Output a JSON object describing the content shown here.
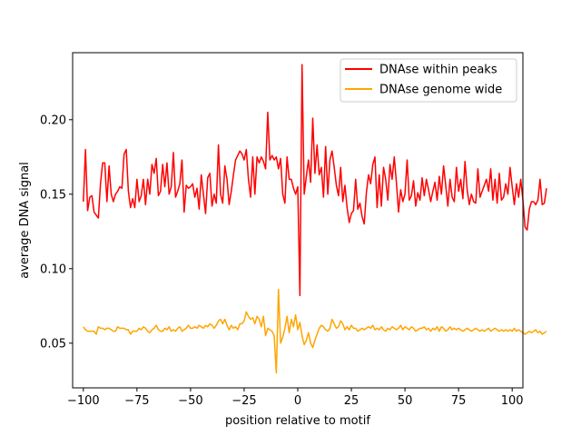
{
  "chart_data": {
    "type": "line",
    "xlabel": "position relative to motif",
    "ylabel": "average DNA signal",
    "xlim": [
      -105,
      105
    ],
    "ylim": [
      0.02,
      0.245
    ],
    "xticks": [
      -100,
      -75,
      -50,
      -25,
      0,
      25,
      50,
      75,
      100
    ],
    "xtick_labels": [
      "−100",
      "−75",
      "−50",
      "−25",
      "0",
      "25",
      "50",
      "75",
      "100"
    ],
    "yticks": [
      0.05,
      0.1,
      0.15,
      0.2
    ],
    "ytick_labels": [
      "0.05",
      "0.10",
      "0.15",
      "0.20"
    ],
    "grid": false,
    "legend_position": "top-right",
    "series": [
      {
        "name": "DNAse within peaks",
        "color": "#ff0000",
        "x_start": -100,
        "x_step": 1,
        "values": [
          0.145,
          0.18,
          0.139,
          0.148,
          0.149,
          0.138,
          0.136,
          0.134,
          0.157,
          0.171,
          0.171,
          0.145,
          0.169,
          0.15,
          0.145,
          0.15,
          0.152,
          0.155,
          0.154,
          0.177,
          0.18,
          0.152,
          0.141,
          0.147,
          0.141,
          0.16,
          0.145,
          0.149,
          0.16,
          0.143,
          0.16,
          0.15,
          0.17,
          0.164,
          0.174,
          0.149,
          0.152,
          0.17,
          0.155,
          0.171,
          0.15,
          0.155,
          0.178,
          0.148,
          0.152,
          0.157,
          0.173,
          0.138,
          0.156,
          0.154,
          0.155,
          0.157,
          0.148,
          0.154,
          0.14,
          0.163,
          0.15,
          0.137,
          0.161,
          0.164,
          0.142,
          0.15,
          0.144,
          0.183,
          0.15,
          0.144,
          0.169,
          0.16,
          0.143,
          0.152,
          0.163,
          0.173,
          0.176,
          0.179,
          0.177,
          0.173,
          0.18,
          0.16,
          0.148,
          0.175,
          0.15,
          0.175,
          0.171,
          0.175,
          0.172,
          0.167,
          0.205,
          0.173,
          0.176,
          0.173,
          0.175,
          0.167,
          0.174,
          0.15,
          0.144,
          0.175,
          0.16,
          0.16,
          0.154,
          0.15,
          0.155,
          0.082,
          0.237,
          0.15,
          0.162,
          0.173,
          0.158,
          0.201,
          0.164,
          0.183,
          0.163,
          0.168,
          0.148,
          0.182,
          0.15,
          0.173,
          0.179,
          0.168,
          0.156,
          0.149,
          0.168,
          0.145,
          0.156,
          0.141,
          0.131,
          0.137,
          0.139,
          0.16,
          0.14,
          0.144,
          0.135,
          0.13,
          0.151,
          0.163,
          0.157,
          0.17,
          0.175,
          0.141,
          0.163,
          0.142,
          0.168,
          0.16,
          0.146,
          0.17,
          0.16,
          0.175,
          0.158,
          0.138,
          0.153,
          0.145,
          0.15,
          0.173,
          0.146,
          0.149,
          0.159,
          0.142,
          0.151,
          0.146,
          0.161,
          0.149,
          0.16,
          0.153,
          0.145,
          0.152,
          0.158,
          0.146,
          0.162,
          0.15,
          0.169,
          0.156,
          0.142,
          0.16,
          0.148,
          0.145,
          0.168,
          0.152,
          0.16,
          0.147,
          0.172,
          0.153,
          0.143,
          0.15,
          0.145,
          0.144,
          0.167,
          0.148,
          0.152,
          0.156,
          0.16,
          0.152,
          0.167,
          0.146,
          0.16,
          0.144,
          0.164,
          0.146,
          0.148,
          0.157,
          0.15,
          0.168,
          0.155,
          0.143,
          0.157,
          0.148,
          0.16,
          0.146,
          0.128,
          0.126,
          0.14,
          0.145,
          0.145,
          0.143,
          0.146,
          0.16,
          0.143,
          0.144,
          0.154
        ]
      },
      {
        "name": "DNAse genome wide",
        "color": "#ffa500",
        "x_start": -100,
        "x_step": 1,
        "values": [
          0.061,
          0.059,
          0.058,
          0.058,
          0.058,
          0.058,
          0.056,
          0.061,
          0.06,
          0.06,
          0.059,
          0.06,
          0.06,
          0.059,
          0.058,
          0.058,
          0.061,
          0.06,
          0.06,
          0.06,
          0.059,
          0.059,
          0.056,
          0.058,
          0.058,
          0.058,
          0.06,
          0.059,
          0.061,
          0.06,
          0.058,
          0.057,
          0.059,
          0.06,
          0.062,
          0.059,
          0.058,
          0.058,
          0.06,
          0.059,
          0.061,
          0.058,
          0.059,
          0.058,
          0.06,
          0.061,
          0.058,
          0.059,
          0.06,
          0.062,
          0.06,
          0.06,
          0.061,
          0.06,
          0.062,
          0.061,
          0.06,
          0.062,
          0.061,
          0.063,
          0.062,
          0.06,
          0.062,
          0.065,
          0.066,
          0.063,
          0.066,
          0.062,
          0.059,
          0.062,
          0.06,
          0.061,
          0.059,
          0.063,
          0.063,
          0.065,
          0.071,
          0.068,
          0.066,
          0.067,
          0.063,
          0.068,
          0.066,
          0.061,
          0.068,
          0.055,
          0.06,
          0.059,
          0.058,
          0.055,
          0.03,
          0.086,
          0.05,
          0.054,
          0.06,
          0.068,
          0.057,
          0.066,
          0.061,
          0.069,
          0.059,
          0.064,
          0.055,
          0.049,
          0.052,
          0.057,
          0.05,
          0.047,
          0.052,
          0.056,
          0.06,
          0.062,
          0.061,
          0.059,
          0.058,
          0.06,
          0.066,
          0.063,
          0.06,
          0.061,
          0.065,
          0.063,
          0.059,
          0.061,
          0.059,
          0.062,
          0.06,
          0.06,
          0.058,
          0.059,
          0.06,
          0.059,
          0.06,
          0.061,
          0.06,
          0.062,
          0.059,
          0.06,
          0.059,
          0.061,
          0.059,
          0.058,
          0.06,
          0.059,
          0.061,
          0.06,
          0.059,
          0.06,
          0.062,
          0.059,
          0.061,
          0.06,
          0.059,
          0.061,
          0.06,
          0.058,
          0.059,
          0.06,
          0.06,
          0.061,
          0.059,
          0.06,
          0.058,
          0.06,
          0.059,
          0.061,
          0.058,
          0.061,
          0.06,
          0.058,
          0.059,
          0.061,
          0.059,
          0.06,
          0.059,
          0.06,
          0.059,
          0.058,
          0.059,
          0.06,
          0.059,
          0.058,
          0.059,
          0.06,
          0.059,
          0.058,
          0.059,
          0.058,
          0.059,
          0.06,
          0.058,
          0.059,
          0.06,
          0.059,
          0.058,
          0.059,
          0.058,
          0.059,
          0.058,
          0.059,
          0.058,
          0.06,
          0.058,
          0.059,
          0.058,
          0.057,
          0.056,
          0.057,
          0.058,
          0.057,
          0.058,
          0.059,
          0.057,
          0.058,
          0.056,
          0.057,
          0.058
        ]
      }
    ]
  }
}
